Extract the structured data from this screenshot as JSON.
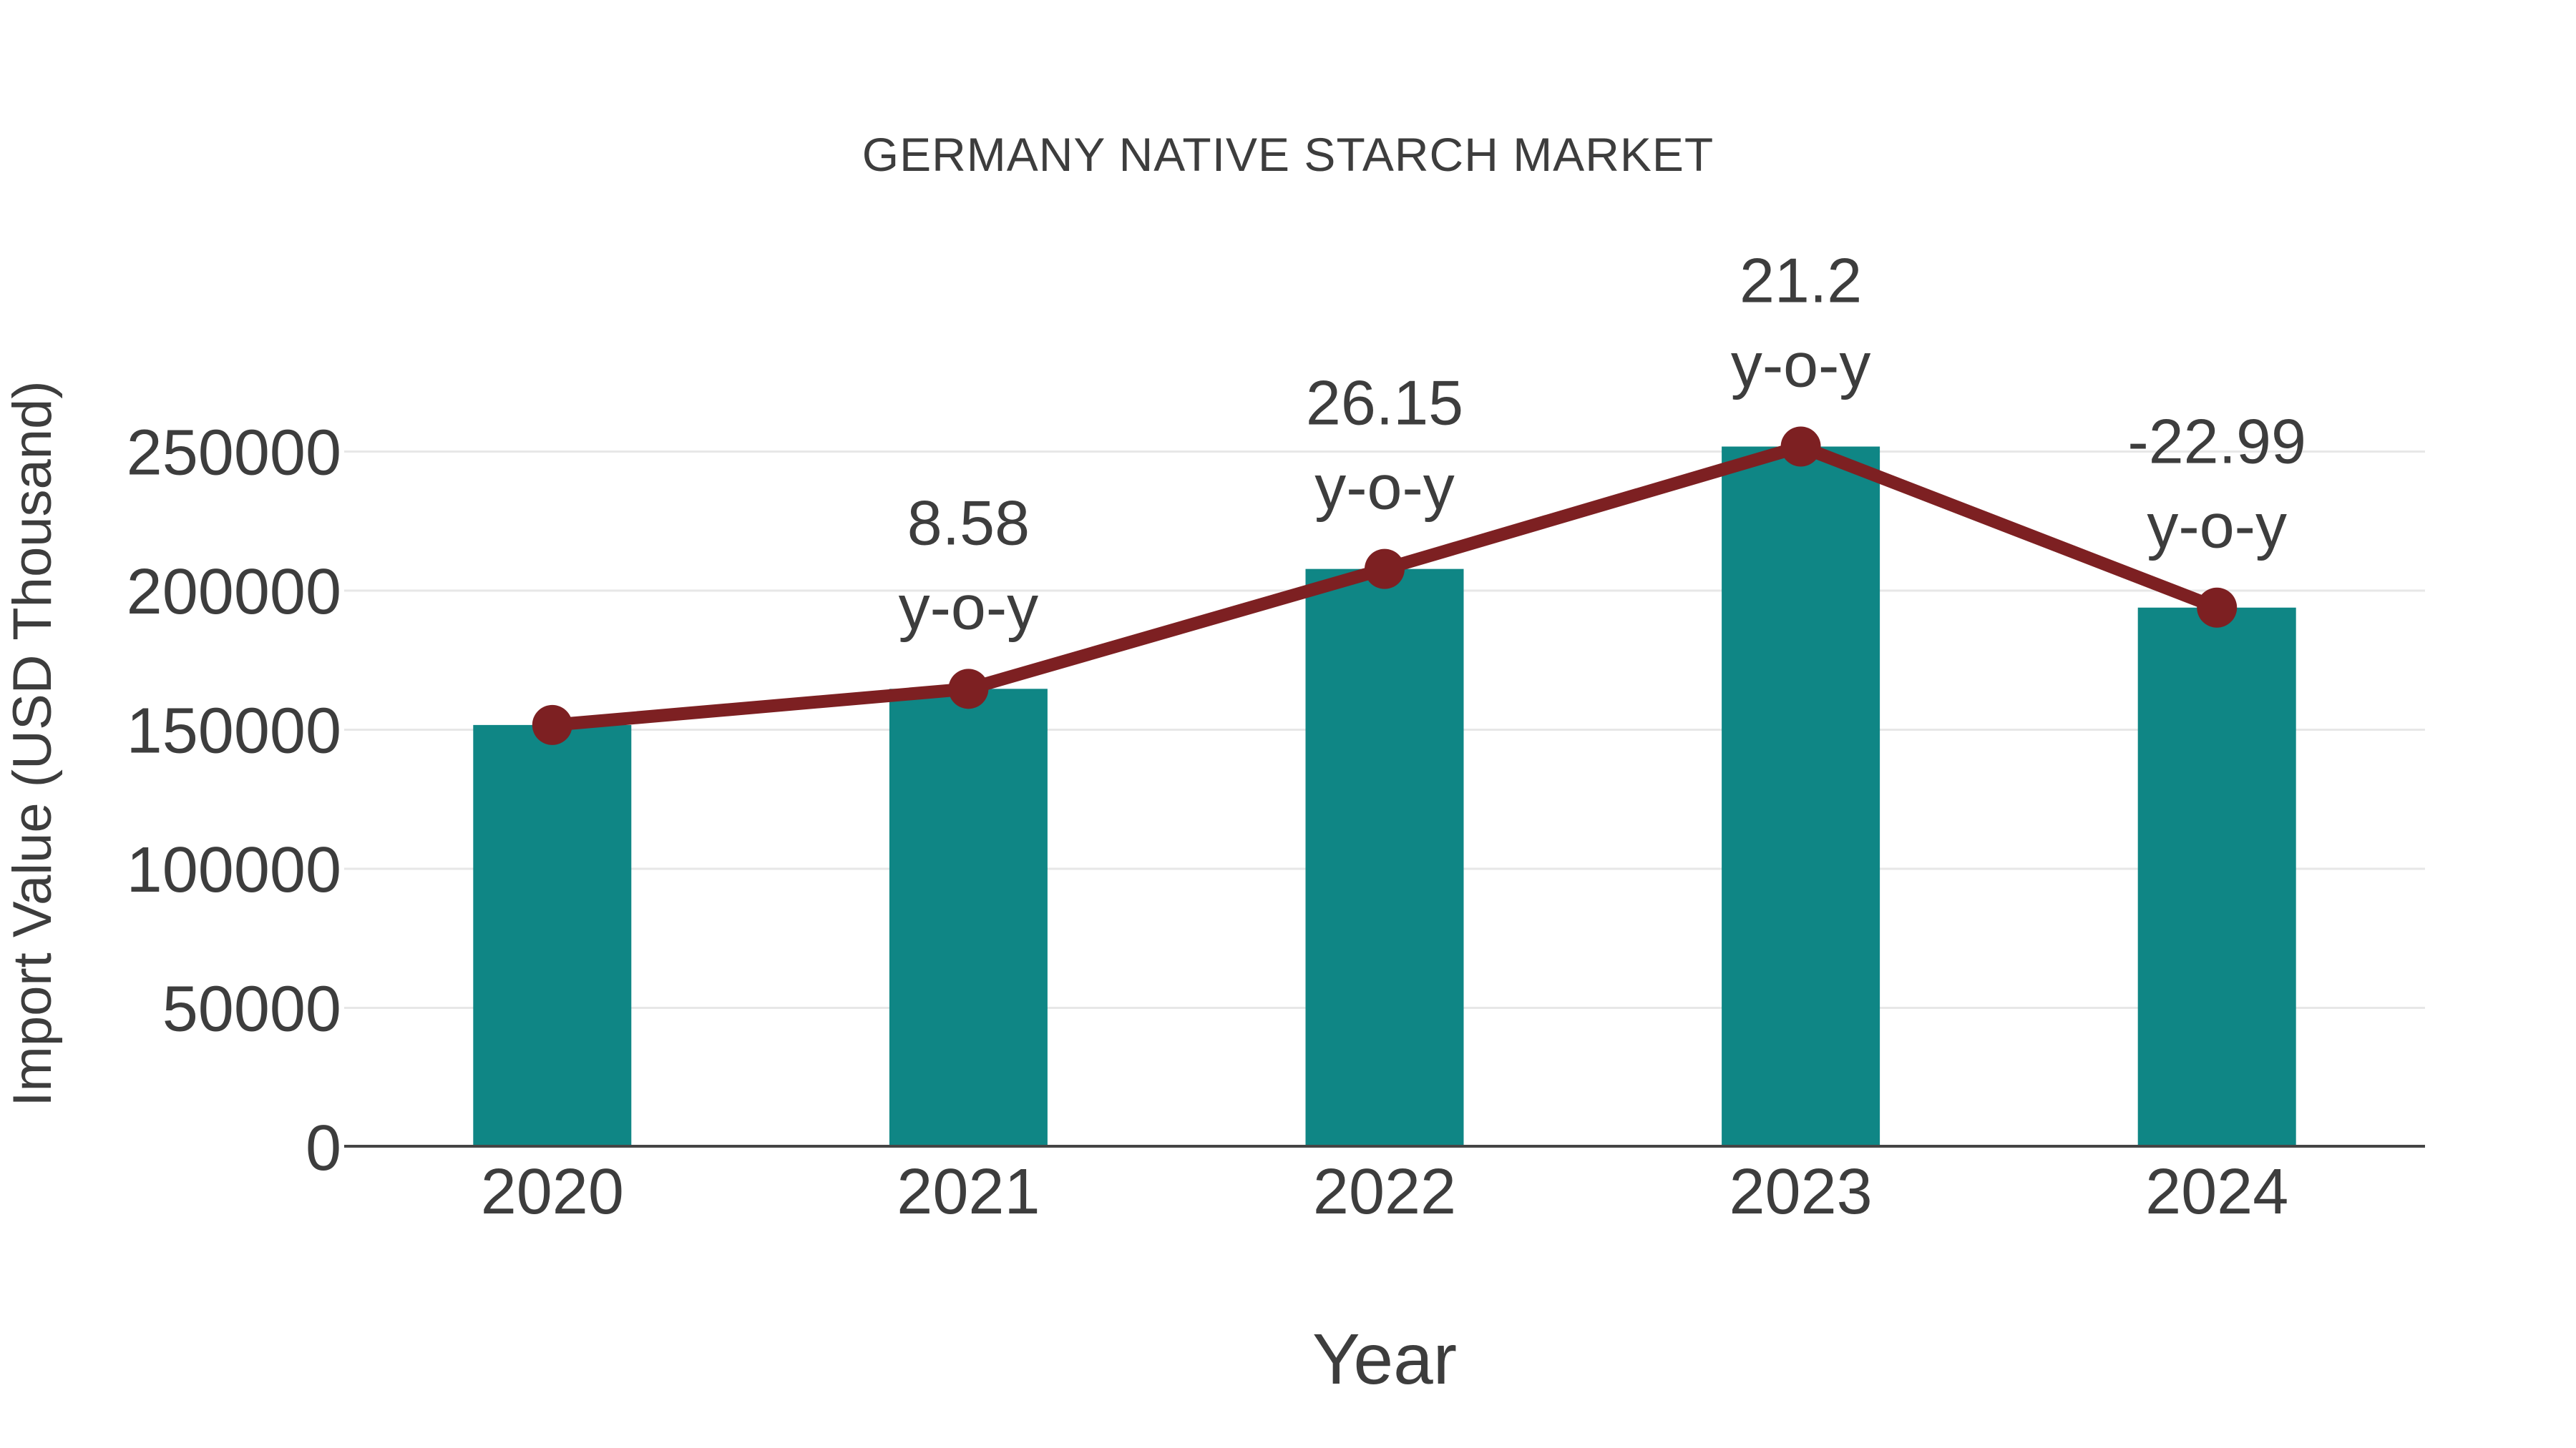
{
  "chart_data": {
    "type": "bar",
    "title": "GERMANY NATIVE STARCH MARKET",
    "xlabel": "Year",
    "ylabel": "Import Value (USD Thousand)",
    "categories": [
      "2020",
      "2021",
      "2022",
      "2023",
      "2024"
    ],
    "series": [
      {
        "name": "Import Value bars",
        "type": "bar",
        "values": [
          151700,
          164700,
          207800,
          251800,
          193900
        ]
      },
      {
        "name": "Import Value trend line",
        "type": "line",
        "values": [
          151700,
          164700,
          207800,
          251800,
          193900
        ]
      }
    ],
    "annotations": [
      {
        "category": "2021",
        "value": "8.58",
        "suffix": "y-o-y"
      },
      {
        "category": "2022",
        "value": "26.15",
        "suffix": "y-o-y"
      },
      {
        "category": "2023",
        "value": "21.2",
        "suffix": "y-o-y"
      },
      {
        "category": "2024",
        "value": "-22.99",
        "suffix": "y-o-y"
      }
    ],
    "yticks": [
      0,
      50000,
      100000,
      150000,
      200000,
      250000
    ],
    "ylim": [
      0,
      250000
    ],
    "grid": true,
    "legend_position": "none",
    "colors": {
      "bar": "#0f8685",
      "line": "#7d2022",
      "marker": "#7d2022",
      "text": "#3d3d3d",
      "grid": "#e7e7e7",
      "axis": "#454545",
      "background": "#ffffff"
    }
  }
}
